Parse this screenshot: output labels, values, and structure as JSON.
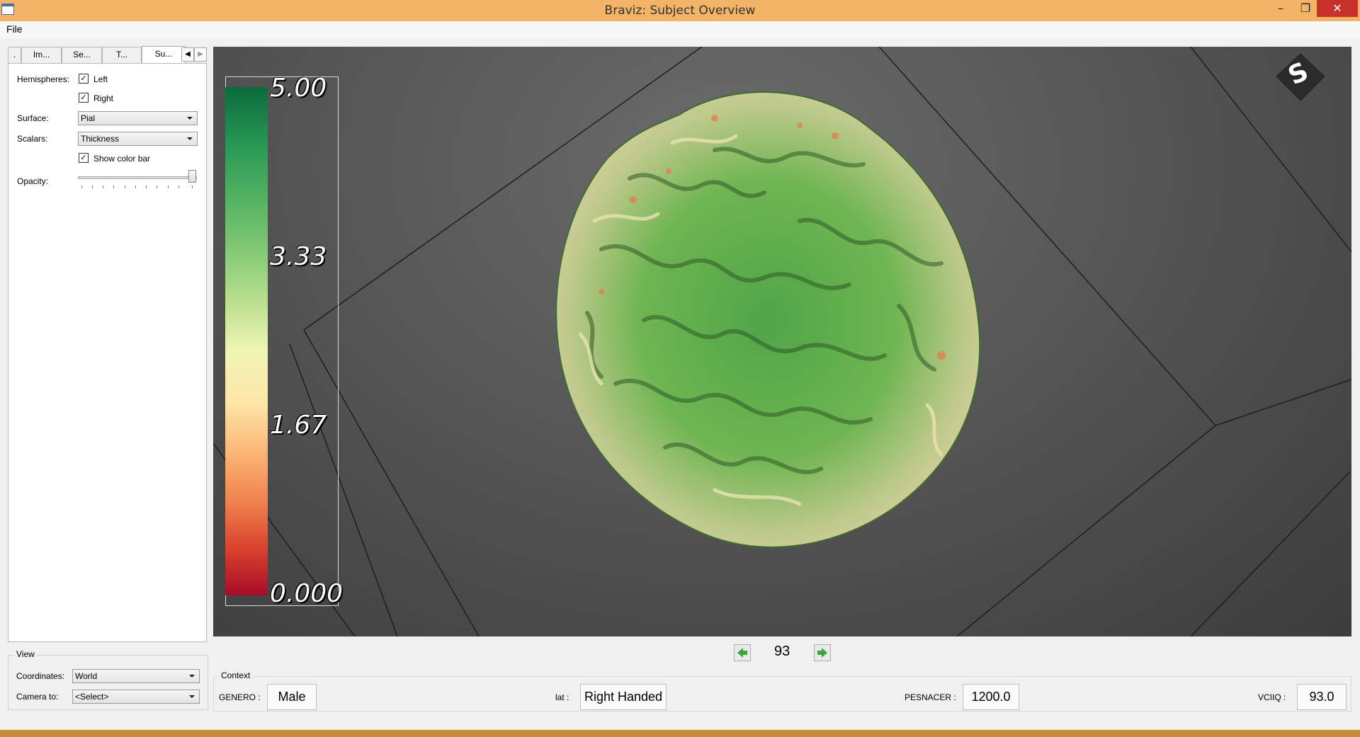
{
  "window": {
    "title": "Braviz: Subject Overview"
  },
  "menu": {
    "file": "File"
  },
  "tabs": [
    {
      "label": "."
    },
    {
      "label": "Im..."
    },
    {
      "label": "Se..."
    },
    {
      "label": "T..."
    },
    {
      "label": "Su...",
      "active": true
    }
  ],
  "surface_panel": {
    "hemispheres_label": "Hemispheres:",
    "left_label": "Left",
    "left_checked": true,
    "right_label": "Right",
    "right_checked": true,
    "surface_label": "Surface:",
    "surface_value": "Pial",
    "scalars_label": "Scalars:",
    "scalars_value": "Thickness",
    "colorbar_label": "Show color bar",
    "colorbar_checked": true,
    "opacity_label": "Opacity:",
    "opacity_fraction": 1.0
  },
  "view": {
    "title": "View",
    "coordinates_label": "Coordinates:",
    "coordinates_value": "World",
    "camera_label": "Camera to:",
    "camera_value": "<Select>"
  },
  "colorbar": {
    "labels": [
      "5.00",
      "3.33",
      "1.67",
      "0.000"
    ]
  },
  "orientation": {
    "letter": "S"
  },
  "navigation": {
    "subject": "93"
  },
  "context": {
    "title": "Context",
    "genero_label": "GENERO :",
    "genero_value": "Male",
    "lat_label": "lat :",
    "lat_value": "Right Handed",
    "pesnacer_label": "PESNACER :",
    "pesnacer_value": "1200.0",
    "vciiq_label": "VCIIQ :",
    "vciiq_value": "93.0"
  },
  "colors": {
    "titlebar": "#f3b467",
    "close": "#c7312a",
    "brain_green": "#5fae4c",
    "brain_pale": "#e8e2b0",
    "brain_orange": "#e8784a"
  }
}
